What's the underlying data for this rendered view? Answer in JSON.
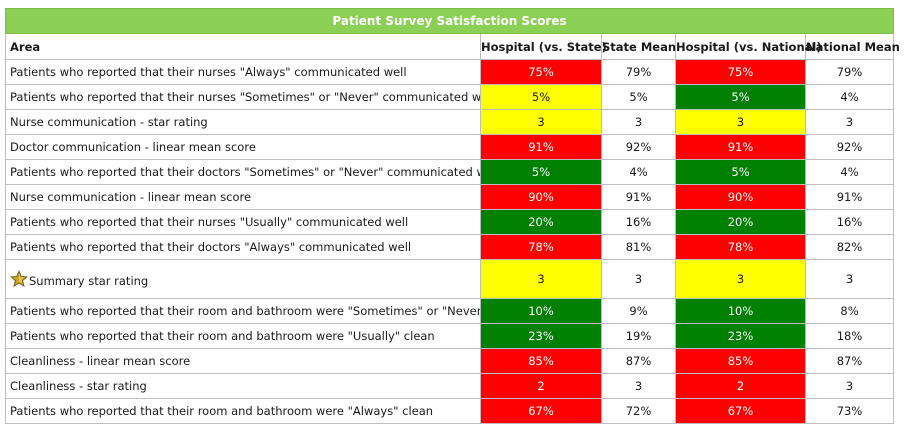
{
  "title": "Patient Survey Satisfaction Scores",
  "headers": [
    "Area",
    "Hospital (vs. State)",
    "State Mean",
    "Hospital (vs. National)",
    "National Mean"
  ],
  "colors": {
    "red": "#ff0000",
    "green": "#008000",
    "yellow": "#ffff00",
    "header_green": "#8bcf55"
  },
  "rows": [
    {
      "area": "Patients who reported that their nurses \"Always\" communicated well",
      "hs": "75%",
      "hs_color": "red",
      "sm": "79%",
      "hn": "75%",
      "hn_color": "red",
      "nm": "79%"
    },
    {
      "area": "Patients who reported that their nurses \"Sometimes\" or \"Never\" communicated well",
      "hs": "5%",
      "hs_color": "yellow",
      "sm": "5%",
      "hn": "5%",
      "hn_color": "green",
      "nm": "4%"
    },
    {
      "area": "Nurse communication - star rating",
      "hs": "3",
      "hs_color": "yellow",
      "sm": "3",
      "hn": "3",
      "hn_color": "yellow",
      "nm": "3"
    },
    {
      "area": "Doctor communication - linear mean score",
      "hs": "91%",
      "hs_color": "red",
      "sm": "92%",
      "hn": "91%",
      "hn_color": "red",
      "nm": "92%"
    },
    {
      "area": "Patients who reported that their doctors \"Sometimes\" or \"Never\" communicated well",
      "hs": "5%",
      "hs_color": "green",
      "sm": "4%",
      "hn": "5%",
      "hn_color": "green",
      "nm": "4%"
    },
    {
      "area": "Nurse communication - linear mean score",
      "hs": "90%",
      "hs_color": "red",
      "sm": "91%",
      "hn": "90%",
      "hn_color": "red",
      "nm": "91%"
    },
    {
      "area": "Patients who reported that their nurses \"Usually\" communicated well",
      "hs": "20%",
      "hs_color": "green",
      "sm": "16%",
      "hn": "20%",
      "hn_color": "green",
      "nm": "16%"
    },
    {
      "area": "Patients who reported that their doctors \"Always\" communicated well",
      "hs": "78%",
      "hs_color": "red",
      "sm": "81%",
      "hn": "78%",
      "hn_color": "red",
      "nm": "82%"
    },
    {
      "area": "Summary star rating",
      "icon": "star-icon",
      "hs": "3",
      "hs_color": "yellow",
      "sm": "3",
      "hn": "3",
      "hn_color": "yellow",
      "nm": "3"
    },
    {
      "area": "Patients who reported that their room and bathroom were \"Sometimes\" or \"Never\" clean",
      "hs": "10%",
      "hs_color": "green",
      "sm": "9%",
      "hn": "10%",
      "hn_color": "green",
      "nm": "8%"
    },
    {
      "area": "Patients who reported that their room and bathroom were \"Usually\" clean",
      "hs": "23%",
      "hs_color": "green",
      "sm": "19%",
      "hn": "23%",
      "hn_color": "green",
      "nm": "18%"
    },
    {
      "area": "Cleanliness - linear mean score",
      "hs": "85%",
      "hs_color": "red",
      "sm": "87%",
      "hn": "85%",
      "hn_color": "red",
      "nm": "87%"
    },
    {
      "area": "Cleanliness - star rating",
      "hs": "2",
      "hs_color": "red",
      "sm": "3",
      "hn": "2",
      "hn_color": "red",
      "nm": "3"
    },
    {
      "area": "Patients who reported that their room and bathroom were \"Always\" clean",
      "hs": "67%",
      "hs_color": "red",
      "sm": "72%",
      "hn": "67%",
      "hn_color": "red",
      "nm": "73%"
    }
  ]
}
